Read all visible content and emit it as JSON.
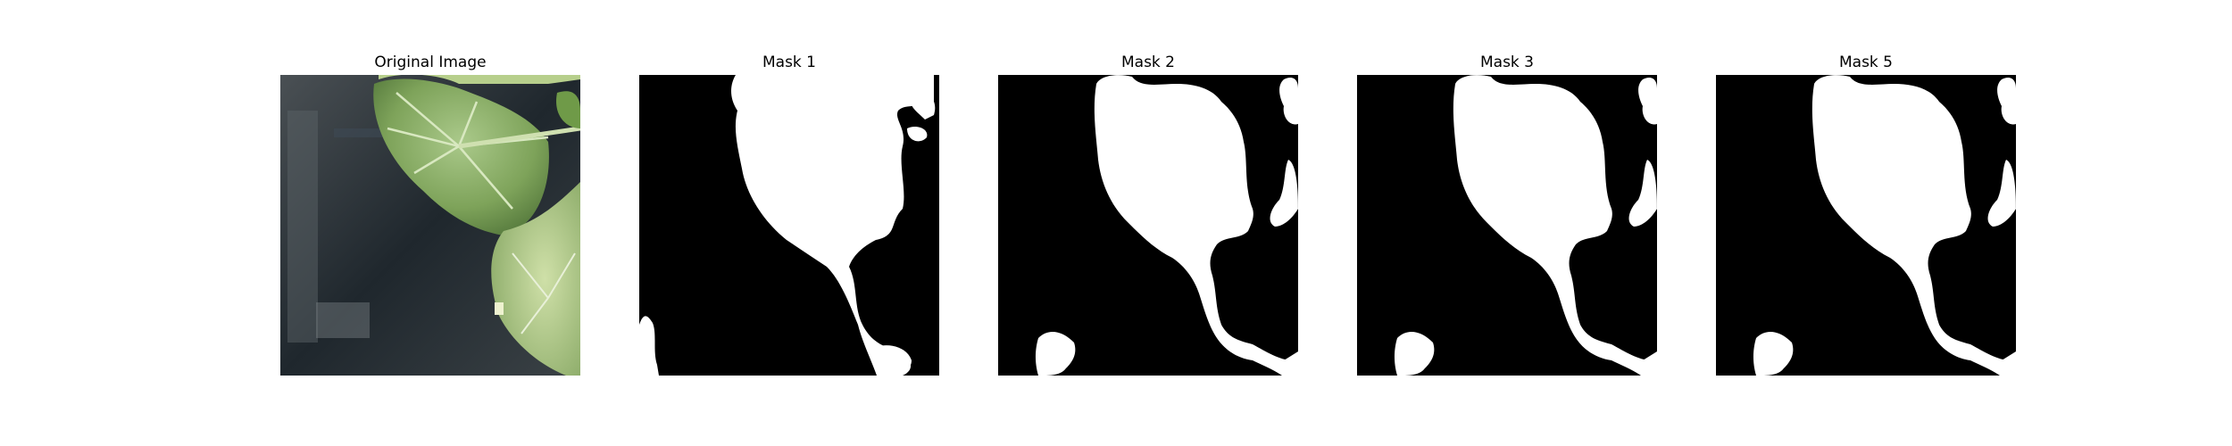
{
  "panels": [
    {
      "title": "Original Image",
      "kind": "photo"
    },
    {
      "title": "Mask 1",
      "kind": "mask"
    },
    {
      "title": "Mask 2",
      "kind": "mask"
    },
    {
      "title": "Mask 3",
      "kind": "mask"
    },
    {
      "title": "Mask 5",
      "kind": "mask"
    }
  ],
  "colors": {
    "background": "#ffffff",
    "mask_foreground": "#ffffff",
    "mask_background": "#000000",
    "leaf": "#8fb467",
    "photo_background": "#2c3338"
  }
}
